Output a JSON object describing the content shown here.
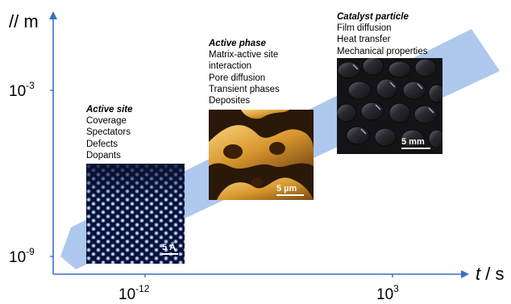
{
  "axes": {
    "y_label": "// m",
    "y_ticks": [
      {
        "base": "10",
        "exp": "-3"
      },
      {
        "base": "10",
        "exp": "-9"
      }
    ],
    "x_label_italic": "t",
    "x_label_rest": " / s",
    "x_ticks": [
      {
        "base": "10",
        "exp": "-12"
      },
      {
        "base": "10",
        "exp": "3"
      }
    ]
  },
  "groups": [
    {
      "title": "Active site",
      "items": [
        "Coverage",
        "Spectators",
        "Defects",
        "Dopants"
      ],
      "scale": "5 Å"
    },
    {
      "title": "Active phase",
      "items": [
        "Matrix-active site",
        "interaction",
        "Pore diffusion",
        "Transient phases",
        "Deposites"
      ],
      "scale": "5 µm"
    },
    {
      "title": "Catalyst particle",
      "items": [
        "Film diffusion",
        "Heat transfer",
        "Mechanical properties"
      ],
      "scale": "5 mm"
    }
  ],
  "colors": {
    "band": "#a9c4ec",
    "axis": "#3a6fc4"
  }
}
